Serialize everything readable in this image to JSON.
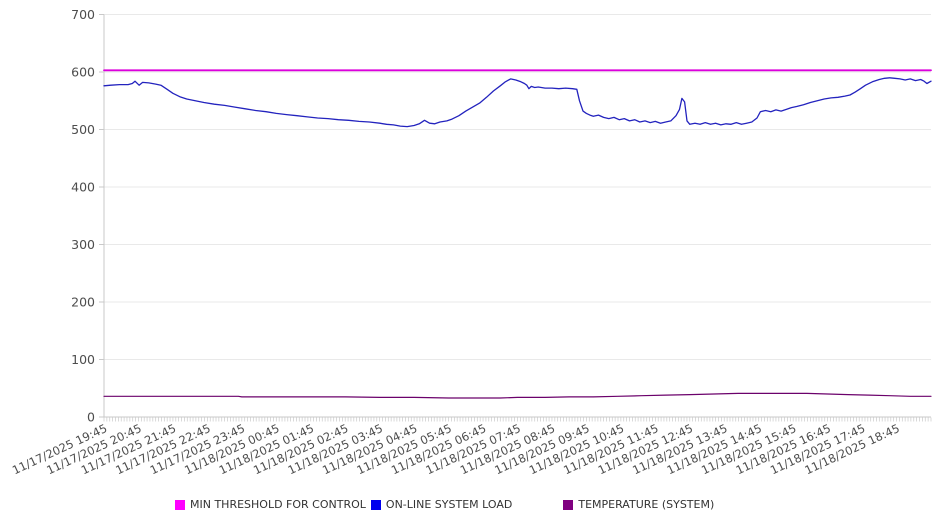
{
  "chart": {
    "background": "#ffffff",
    "grid_color": "#e9e9e9",
    "axis_color": "#c9c9c9",
    "tick_label_color": "#4d4d4d",
    "legend_text_color": "#333333"
  },
  "chart_data": {
    "type": "line",
    "title": "",
    "grid": "horizontal",
    "legend_position": "bottom",
    "x_axis": {
      "hours_span": 24,
      "minor_tick_count": 288,
      "labels": [
        "11/17/2025 19:45",
        "11/17/2025 20:45",
        "11/17/2025 21:45",
        "11/17/2025 22:45",
        "11/17/2025 23:45",
        "11/18/2025 00:45",
        "11/18/2025 01:45",
        "11/18/2025 02:45",
        "11/18/2025 03:45",
        "11/18/2025 04:45",
        "11/18/2025 05:45",
        "11/18/2025 06:45",
        "11/18/2025 07:45",
        "11/18/2025 08:45",
        "11/18/2025 09:45",
        "11/18/2025 10:45",
        "11/18/2025 11:45",
        "11/18/2025 12:45",
        "11/18/2025 13:45",
        "11/18/2025 14:45",
        "11/18/2025 15:45",
        "11/18/2025 16:45",
        "11/18/2025 17:45",
        "11/18/2025 18:45"
      ]
    },
    "y_axis": {
      "min": 0,
      "max": 700,
      "step": 100,
      "ticks": [
        0,
        100,
        200,
        300,
        400,
        500,
        600,
        700
      ]
    },
    "series": [
      {
        "name": "MIN THRESHOLD FOR CONTROL",
        "color": "#DC00DC",
        "swatch_color": "#FF00FF",
        "width": 1.8,
        "points": [
          [
            0,
            603
          ],
          [
            24,
            603
          ]
        ]
      },
      {
        "name": "ON-LINE SYSTEM LOAD",
        "color": "#2323BE",
        "swatch_color": "#0000EE",
        "width": 1.3,
        "points": [
          [
            0,
            576
          ],
          [
            0.2,
            577
          ],
          [
            0.45,
            578
          ],
          [
            0.7,
            578
          ],
          [
            0.82,
            580
          ],
          [
            0.9,
            584
          ],
          [
            1.02,
            577
          ],
          [
            1.12,
            582
          ],
          [
            1.3,
            581
          ],
          [
            1.5,
            579
          ],
          [
            1.65,
            577
          ],
          [
            1.83,
            570
          ],
          [
            2,
            563
          ],
          [
            2.2,
            557
          ],
          [
            2.4,
            553
          ],
          [
            2.65,
            550
          ],
          [
            2.9,
            547
          ],
          [
            3.2,
            544
          ],
          [
            3.5,
            542
          ],
          [
            3.8,
            539
          ],
          [
            4.1,
            536
          ],
          [
            4.4,
            533
          ],
          [
            4.7,
            531
          ],
          [
            5,
            528
          ],
          [
            5.3,
            526
          ],
          [
            5.6,
            524
          ],
          [
            5.9,
            522
          ],
          [
            6.2,
            520
          ],
          [
            6.5,
            519
          ],
          [
            6.8,
            517
          ],
          [
            7.1,
            516
          ],
          [
            7.4,
            514
          ],
          [
            7.7,
            513
          ],
          [
            8,
            511
          ],
          [
            8.2,
            509
          ],
          [
            8.4,
            508
          ],
          [
            8.6,
            506
          ],
          [
            8.8,
            505
          ],
          [
            9,
            507
          ],
          [
            9.15,
            510
          ],
          [
            9.3,
            516
          ],
          [
            9.45,
            511
          ],
          [
            9.6,
            510
          ],
          [
            9.75,
            513
          ],
          [
            9.95,
            515
          ],
          [
            10.1,
            518
          ],
          [
            10.3,
            524
          ],
          [
            10.5,
            532
          ],
          [
            10.7,
            539
          ],
          [
            10.9,
            546
          ],
          [
            11.1,
            556
          ],
          [
            11.3,
            567
          ],
          [
            11.5,
            576
          ],
          [
            11.65,
            583
          ],
          [
            11.8,
            588
          ],
          [
            11.95,
            586
          ],
          [
            12.1,
            583
          ],
          [
            12.2,
            580
          ],
          [
            12.27,
            577
          ],
          [
            12.33,
            571
          ],
          [
            12.4,
            575
          ],
          [
            12.5,
            573
          ],
          [
            12.6,
            574
          ],
          [
            12.8,
            572
          ],
          [
            13,
            572
          ],
          [
            13.2,
            571
          ],
          [
            13.4,
            572
          ],
          [
            13.6,
            571
          ],
          [
            13.72,
            570
          ],
          [
            13.8,
            550
          ],
          [
            13.9,
            532
          ],
          [
            14,
            528
          ],
          [
            14.1,
            525
          ],
          [
            14.2,
            523
          ],
          [
            14.35,
            525
          ],
          [
            14.5,
            521
          ],
          [
            14.65,
            519
          ],
          [
            14.8,
            521
          ],
          [
            14.95,
            517
          ],
          [
            15.1,
            519
          ],
          [
            15.25,
            515
          ],
          [
            15.4,
            517
          ],
          [
            15.55,
            513
          ],
          [
            15.7,
            515
          ],
          [
            15.85,
            512
          ],
          [
            16,
            514
          ],
          [
            16.15,
            511
          ],
          [
            16.3,
            513
          ],
          [
            16.45,
            515
          ],
          [
            16.6,
            524
          ],
          [
            16.7,
            535
          ],
          [
            16.77,
            554
          ],
          [
            16.85,
            548
          ],
          [
            16.92,
            515
          ],
          [
            17,
            509
          ],
          [
            17.15,
            511
          ],
          [
            17.3,
            509
          ],
          [
            17.45,
            512
          ],
          [
            17.6,
            509
          ],
          [
            17.75,
            511
          ],
          [
            17.9,
            508
          ],
          [
            18.05,
            510
          ],
          [
            18.2,
            509
          ],
          [
            18.35,
            512
          ],
          [
            18.5,
            509
          ],
          [
            18.65,
            511
          ],
          [
            18.8,
            513
          ],
          [
            18.95,
            520
          ],
          [
            19.05,
            531
          ],
          [
            19.2,
            533
          ],
          [
            19.35,
            531
          ],
          [
            19.5,
            534
          ],
          [
            19.65,
            532
          ],
          [
            19.8,
            535
          ],
          [
            19.95,
            538
          ],
          [
            20.1,
            540
          ],
          [
            20.3,
            543
          ],
          [
            20.5,
            547
          ],
          [
            20.7,
            550
          ],
          [
            20.9,
            553
          ],
          [
            21.1,
            555
          ],
          [
            21.3,
            556
          ],
          [
            21.5,
            558
          ],
          [
            21.65,
            560
          ],
          [
            21.8,
            565
          ],
          [
            21.95,
            571
          ],
          [
            22.1,
            577
          ],
          [
            22.3,
            583
          ],
          [
            22.5,
            587
          ],
          [
            22.65,
            589
          ],
          [
            22.8,
            590
          ],
          [
            22.95,
            589
          ],
          [
            23.1,
            588
          ],
          [
            23.25,
            586
          ],
          [
            23.4,
            588
          ],
          [
            23.55,
            585
          ],
          [
            23.7,
            587
          ],
          [
            23.8,
            584
          ],
          [
            23.88,
            580
          ],
          [
            24,
            584
          ]
        ]
      },
      {
        "name": "TEMPERATURE (SYSTEM)",
        "color": "#6B016B",
        "swatch_color": "#800080",
        "width": 1.2,
        "points": [
          [
            0,
            36
          ],
          [
            1,
            36
          ],
          [
            2,
            36
          ],
          [
            3,
            36
          ],
          [
            3.9,
            36
          ],
          [
            4,
            35
          ],
          [
            5,
            35
          ],
          [
            6,
            35
          ],
          [
            7,
            35
          ],
          [
            8,
            34
          ],
          [
            9,
            34
          ],
          [
            10,
            33
          ],
          [
            11,
            33
          ],
          [
            11.5,
            33
          ],
          [
            12,
            34
          ],
          [
            12.8,
            34
          ],
          [
            13.5,
            35
          ],
          [
            14.2,
            35
          ],
          [
            14.9,
            36
          ],
          [
            15.6,
            37
          ],
          [
            16.3,
            38
          ],
          [
            17,
            39
          ],
          [
            17.7,
            40
          ],
          [
            18.4,
            41
          ],
          [
            19.4,
            41
          ],
          [
            20.4,
            41
          ],
          [
            21,
            40
          ],
          [
            21.6,
            39
          ],
          [
            22.2,
            38
          ],
          [
            22.8,
            37
          ],
          [
            23.4,
            36
          ],
          [
            24,
            36
          ]
        ]
      }
    ]
  }
}
